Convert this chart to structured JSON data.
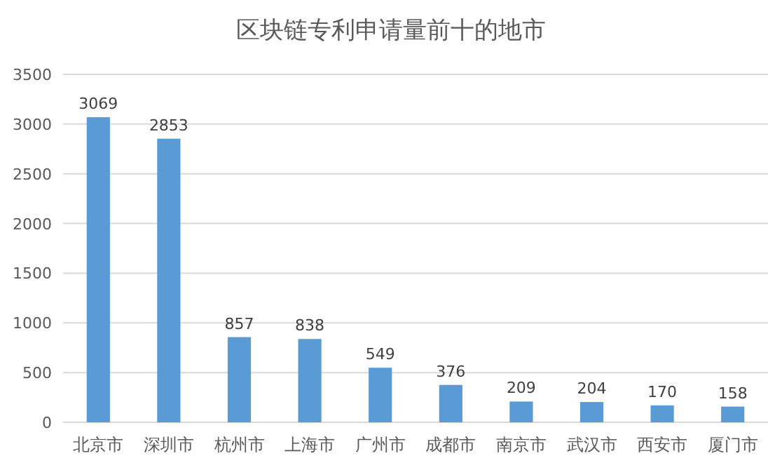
{
  "chart_data": {
    "type": "bar",
    "title": "区块链专利申请量前十的地市",
    "categories": [
      "北京市",
      "深圳市",
      "杭州市",
      "上海市",
      "广州市",
      "成都市",
      "南京市",
      "武汉市",
      "西安市",
      "厦门市"
    ],
    "values": [
      3069,
      2853,
      857,
      838,
      549,
      376,
      209,
      204,
      170,
      158
    ],
    "color": "#5b9bd5",
    "ylim": [
      0,
      3500
    ],
    "yticks": [
      0,
      500,
      1000,
      1500,
      2000,
      2500,
      3000,
      3500
    ],
    "grid": "y",
    "data_labels": true
  }
}
